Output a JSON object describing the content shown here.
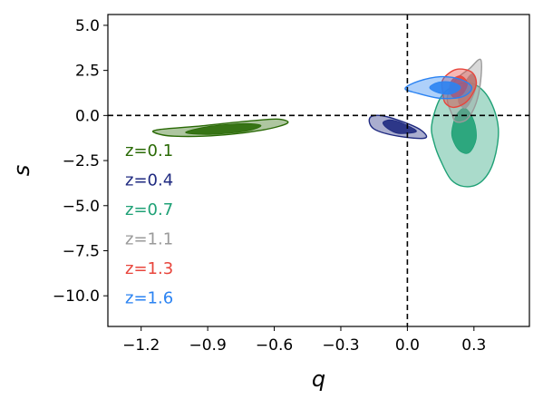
{
  "chart_data": {
    "type": "contour",
    "xlabel": "q",
    "ylabel": "s",
    "xlim": [
      -1.35,
      0.55
    ],
    "ylim": [
      -11.7,
      5.6
    ],
    "x_ticks": [
      -1.2,
      -0.9,
      -0.6,
      -0.3,
      0.0,
      0.3
    ],
    "x_tick_labels": [
      "−1.2",
      "−0.9",
      "−0.6",
      "−0.3",
      "0.0",
      "0.3"
    ],
    "y_ticks": [
      5.0,
      2.5,
      0.0,
      -2.5,
      -5.0,
      -7.5,
      -10.0
    ],
    "y_tick_labels": [
      "5.0",
      "2.5",
      "0.0",
      "−2.5",
      "−5.0",
      "−7.5",
      "−10.0"
    ],
    "reference_lines": {
      "x": 0.0,
      "y": 0.0,
      "style": "dashed"
    },
    "grid": false,
    "legend_placement": "left",
    "series": [
      {
        "name": "z=0.1",
        "color": "#2a6a06",
        "contours": [
          {
            "level": "outer",
            "points": [
              [
                -1.14,
                -0.95
              ],
              [
                -1.05,
                -1.15
              ],
              [
                -0.85,
                -1.1
              ],
              [
                -0.65,
                -0.8
              ],
              [
                -0.54,
                -0.42
              ],
              [
                -0.59,
                -0.2
              ],
              [
                -0.75,
                -0.35
              ],
              [
                -0.95,
                -0.6
              ],
              [
                -1.12,
                -0.78
              ]
            ]
          },
          {
            "level": "inner",
            "points": [
              [
                -1.0,
                -0.95
              ],
              [
                -0.88,
                -1.05
              ],
              [
                -0.72,
                -0.85
              ],
              [
                -0.66,
                -0.55
              ],
              [
                -0.74,
                -0.45
              ],
              [
                -0.9,
                -0.62
              ]
            ]
          }
        ]
      },
      {
        "name": "z=0.4",
        "color": "#1f2a80",
        "contours": [
          {
            "level": "outer",
            "points": [
              [
                -0.17,
                -0.15
              ],
              [
                -0.12,
                0.0
              ],
              [
                -0.02,
                -0.35
              ],
              [
                0.06,
                -0.8
              ],
              [
                0.08,
                -1.25
              ],
              [
                -0.04,
                -1.15
              ],
              [
                -0.15,
                -0.75
              ]
            ]
          },
          {
            "level": "inner",
            "points": [
              [
                -0.11,
                -0.38
              ],
              [
                -0.07,
                -0.25
              ],
              [
                0.0,
                -0.55
              ],
              [
                0.04,
                -0.9
              ],
              [
                -0.04,
                -1.0
              ],
              [
                -0.09,
                -0.72
              ]
            ]
          }
        ]
      },
      {
        "name": "z=0.7",
        "color": "#1fa176",
        "contours": [
          {
            "level": "outer",
            "points": [
              [
                0.11,
                -0.5
              ],
              [
                0.15,
                1.0
              ],
              [
                0.22,
                1.7
              ],
              [
                0.3,
                1.75
              ],
              [
                0.37,
                0.9
              ],
              [
                0.41,
                -0.7
              ],
              [
                0.39,
                -2.5
              ],
              [
                0.34,
                -3.6
              ],
              [
                0.27,
                -3.95
              ],
              [
                0.2,
                -3.6
              ],
              [
                0.15,
                -2.5
              ],
              [
                0.12,
                -1.5
              ]
            ]
          },
          {
            "level": "inner",
            "points": [
              [
                0.2,
                -0.9
              ],
              [
                0.22,
                0.0
              ],
              [
                0.26,
                0.4
              ],
              [
                0.3,
                -0.3
              ],
              [
                0.31,
                -1.3
              ],
              [
                0.28,
                -2.05
              ],
              [
                0.24,
                -2.0
              ],
              [
                0.21,
                -1.5
              ]
            ]
          }
        ]
      },
      {
        "name": "z=1.1",
        "color": "#9a9a9a",
        "contours": [
          {
            "level": "outer",
            "points": [
              [
                0.2,
                0.1
              ],
              [
                0.18,
                1.0
              ],
              [
                0.22,
                2.0
              ],
              [
                0.28,
                2.6
              ],
              [
                0.33,
                3.1
              ],
              [
                0.33,
                1.9
              ],
              [
                0.31,
                0.7
              ],
              [
                0.27,
                -0.2
              ],
              [
                0.22,
                -0.35
              ]
            ]
          },
          {
            "level": "inner",
            "points": [
              [
                0.23,
                0.8
              ],
              [
                0.25,
                1.6
              ],
              [
                0.29,
                2.3
              ],
              [
                0.31,
                1.7
              ],
              [
                0.29,
                0.9
              ],
              [
                0.26,
                0.4
              ]
            ]
          }
        ]
      },
      {
        "name": "z=1.3",
        "color": "#e8453c",
        "contours": [
          {
            "level": "outer",
            "points": [
              [
                0.16,
                1.25
              ],
              [
                0.16,
                2.0
              ],
              [
                0.22,
                2.55
              ],
              [
                0.29,
                2.4
              ],
              [
                0.31,
                1.7
              ],
              [
                0.27,
                0.8
              ],
              [
                0.21,
                0.45
              ],
              [
                0.17,
                0.7
              ]
            ]
          },
          {
            "level": "inner",
            "points": [
              [
                0.19,
                1.4
              ],
              [
                0.2,
                1.95
              ],
              [
                0.24,
                2.2
              ],
              [
                0.27,
                1.8
              ],
              [
                0.25,
                1.2
              ],
              [
                0.21,
                1.0
              ]
            ]
          }
        ]
      },
      {
        "name": "z=1.6",
        "color": "#2b83f2",
        "contours": [
          {
            "level": "outer",
            "points": [
              [
                -0.01,
                1.5
              ],
              [
                0.05,
                1.9
              ],
              [
                0.15,
                2.15
              ],
              [
                0.24,
                2.0
              ],
              [
                0.29,
                1.55
              ],
              [
                0.25,
                1.05
              ],
              [
                0.15,
                0.95
              ],
              [
                0.04,
                1.25
              ]
            ]
          },
          {
            "level": "inner",
            "points": [
              [
                0.1,
                1.55
              ],
              [
                0.14,
                1.85
              ],
              [
                0.2,
                1.85
              ],
              [
                0.24,
                1.55
              ],
              [
                0.2,
                1.2
              ],
              [
                0.14,
                1.25
              ]
            ]
          }
        ]
      }
    ]
  }
}
